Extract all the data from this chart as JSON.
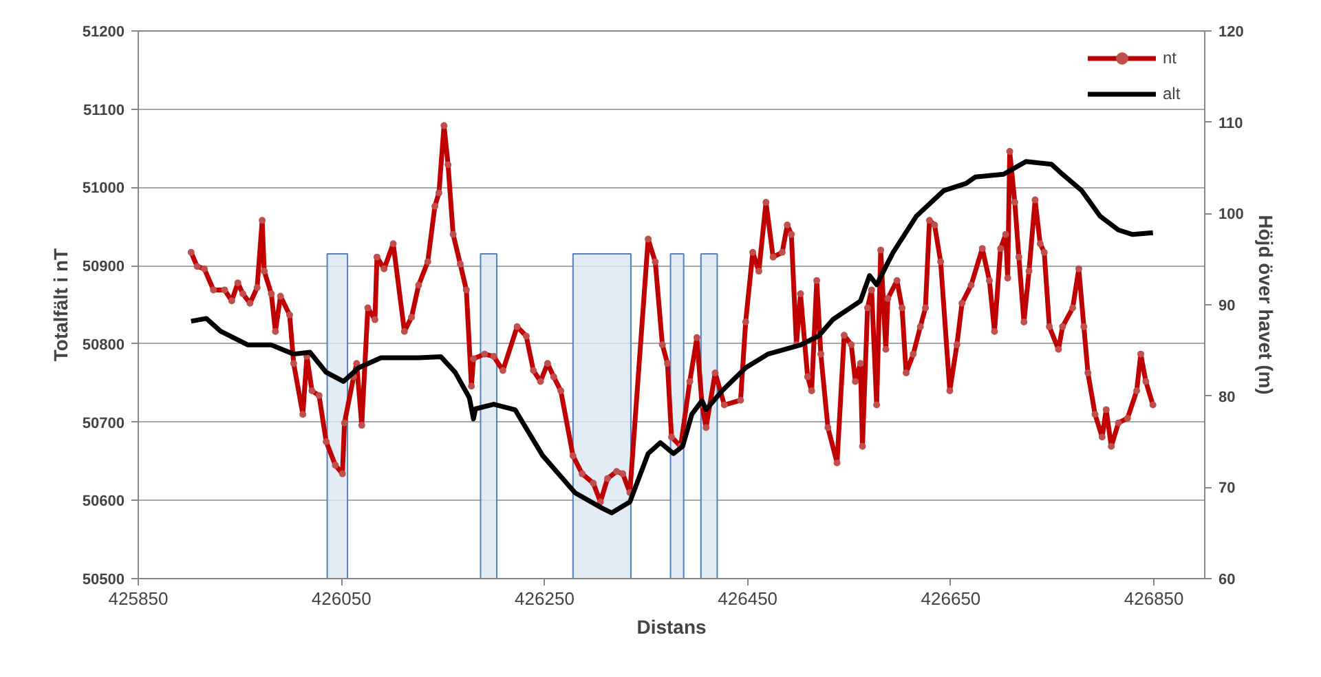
{
  "chart_data": {
    "type": "line",
    "xlabel": "Distans",
    "ylabel": "Totalfält i nT",
    "y2label": "Höjd över havet (m)",
    "xlim": [
      425850,
      426900
    ],
    "xticks": [
      425850,
      426050,
      426250,
      426450,
      426650,
      426850
    ],
    "ylim": [
      50500,
      51200
    ],
    "yticks": [
      50500,
      50600,
      50700,
      50800,
      50900,
      51000,
      51100,
      51200
    ],
    "y2lim": [
      60,
      120
    ],
    "y2ticks": [
      60,
      70,
      80,
      90,
      100,
      110,
      120
    ],
    "grid": "y",
    "legend": "top right",
    "bands": [
      {
        "axis": "x",
        "from": 426036,
        "to": 426056,
        "color": "#dce6f2"
      },
      {
        "axis": "x",
        "from": 426187,
        "to": 426203,
        "color": "#dce6f2"
      },
      {
        "axis": "x",
        "from": 426278,
        "to": 426335,
        "color": "#dce6f2"
      },
      {
        "axis": "x",
        "from": 426374,
        "to": 426387,
        "color": "#dce6f2"
      },
      {
        "axis": "x",
        "from": 426404,
        "to": 426420,
        "color": "#dce6f2"
      }
    ],
    "series": [
      {
        "name": "nt",
        "color": "#c00000",
        "marker": "circle",
        "x": [
          425902,
          425908,
          425915,
          425924,
          425935,
          425942,
          425948,
          425953,
          425960,
          425967,
          425972,
          425974,
          425981,
          425985,
          425990,
          425999,
          426003,
          426012,
          426016,
          426021,
          426028,
          426035,
          426044,
          426051,
          426053,
          426062,
          426065,
          426070,
          426076,
          426083,
          426085,
          426092,
          426101,
          426112,
          426119,
          426126,
          426135,
          426142,
          426146,
          426151,
          426155,
          426160,
          426167,
          426173,
          426178,
          426180,
          426191,
          426200,
          426209,
          426223,
          426232,
          426239,
          426246,
          426253,
          426259,
          426266,
          426278,
          426287,
          426298,
          426305,
          426312,
          426321,
          426327,
          426334,
          426352,
          426359,
          426366,
          426371,
          426375,
          426384,
          426393,
          426400,
          426405,
          426409,
          426418,
          426427,
          426443,
          426448,
          426455,
          426461,
          426468,
          426475,
          426484,
          426489,
          426493,
          426498,
          426502,
          426509,
          426513,
          426518,
          426522,
          426529,
          426538,
          426545,
          426552,
          426556,
          426561,
          426563,
          426568,
          426572,
          426577,
          426581,
          426586,
          426588,
          426597,
          426602,
          426606,
          426613,
          426620,
          426625,
          426629,
          426634,
          426640,
          426649,
          426656,
          426661,
          426670,
          426681,
          426688,
          426693,
          426699,
          426704,
          426706,
          426708,
          426713,
          426717,
          426722,
          426727,
          426733,
          426738,
          426742,
          426747,
          426756,
          426760,
          426770,
          426776,
          426781,
          426785,
          426792,
          426799,
          426803,
          426808,
          426815,
          426824,
          426833,
          426837,
          426842,
          426849
        ],
        "values": [
          50917,
          50899,
          50896,
          50869,
          50869,
          50855,
          50878,
          50864,
          50852,
          50872,
          50958,
          50893,
          50864,
          50816,
          50861,
          50837,
          50775,
          50710,
          50784,
          50740,
          50734,
          50675,
          50645,
          50634,
          50699,
          50758,
          50775,
          50696,
          50846,
          50831,
          50911,
          50896,
          50928,
          50816,
          50834,
          50875,
          50905,
          50976,
          50993,
          51079,
          51029,
          50940,
          50902,
          50869,
          50746,
          50781,
          50787,
          50784,
          50766,
          50822,
          50810,
          50766,
          50752,
          50775,
          50758,
          50740,
          50657,
          50634,
          50622,
          50598,
          50628,
          50637,
          50634,
          50610,
          50934,
          50905,
          50799,
          50775,
          50681,
          50669,
          50752,
          50808,
          50722,
          50693,
          50763,
          50722,
          50728,
          50828,
          50917,
          50893,
          50981,
          50911,
          50917,
          50952,
          50940,
          50799,
          50864,
          50758,
          50740,
          50881,
          50787,
          50693,
          50648,
          50811,
          50799,
          50752,
          50775,
          50669,
          50846,
          50869,
          50722,
          50920,
          50793,
          50858,
          50881,
          50846,
          50763,
          50787,
          50822,
          50846,
          50958,
          50952,
          50905,
          50740,
          50799,
          50852,
          50875,
          50922,
          50881,
          50816,
          50922,
          50940,
          50884,
          51046,
          50981,
          50911,
          50828,
          50893,
          50984,
          50928,
          50917,
          50822,
          50793,
          50822,
          50846,
          50896,
          50822,
          50763,
          50710,
          50681,
          50716,
          50669,
          50699,
          50705,
          50740,
          50787,
          50752,
          50722
        ]
      },
      {
        "name": "alt",
        "color": "#000000",
        "marker": "none",
        "axis": "y2",
        "x": [
          425902,
          425917,
          425931,
          425958,
          425981,
          426003,
          426019,
          426035,
          426052,
          426067,
          426089,
          426126,
          426148,
          426162,
          426176,
          426180,
          426182,
          426200,
          426221,
          426248,
          426280,
          426307,
          426316,
          426334,
          426352,
          426364,
          426377,
          426386,
          426395,
          426405,
          426409,
          426425,
          426448,
          426470,
          426502,
          426520,
          426534,
          426561,
          426570,
          426577,
          426593,
          426616,
          426643,
          426665,
          426674,
          426702,
          426724,
          426749,
          426760,
          426779,
          426797,
          426815,
          426829,
          426849
        ],
        "values": [
          88.2,
          88.5,
          87.1,
          85.6,
          85.6,
          84.6,
          84.8,
          82.6,
          81.6,
          83.1,
          84.2,
          84.2,
          84.3,
          82.6,
          79.8,
          77.5,
          78.6,
          79.1,
          78.5,
          73.5,
          69.4,
          67.7,
          67.2,
          68.4,
          73.7,
          74.9,
          73.7,
          74.5,
          78.0,
          79.5,
          78.5,
          80.6,
          83.1,
          84.6,
          85.6,
          86.6,
          88.4,
          90.4,
          93.2,
          92.2,
          95.7,
          99.7,
          102.5,
          103.3,
          104.0,
          104.3,
          105.7,
          105.4,
          104.3,
          102.5,
          99.7,
          98.2,
          97.7,
          97.9
        ]
      }
    ]
  }
}
